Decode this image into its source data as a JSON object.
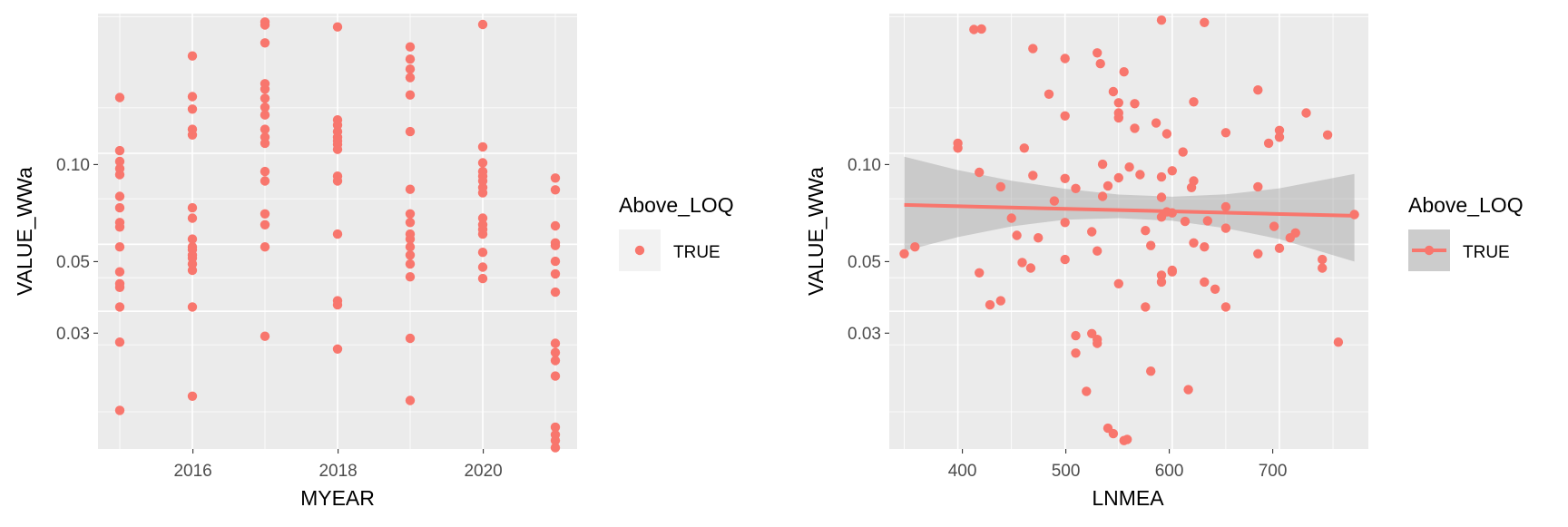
{
  "chart_data": [
    {
      "type": "scatter",
      "xlabel": "MYEAR",
      "ylabel": "VALUE_WWa",
      "xlim": [
        2014.7,
        2021.3
      ],
      "xticks": [
        2016,
        2018,
        2020
      ],
      "xtick_labels": [
        "2016",
        "2018",
        "2020"
      ],
      "y_scale": "log",
      "ylim": [
        0.0105,
        0.29
      ],
      "yticks": [
        0.03,
        0.05,
        0.1
      ],
      "ytick_labels": [
        "0.03",
        "0.05",
        "0.10"
      ],
      "grid": true,
      "legend": {
        "title": "Above_LOQ",
        "entries": [
          "TRUE"
        ],
        "placement": "right"
      },
      "color": "#F8766D",
      "panel_background": "#EBEBEB",
      "series": [
        {
          "x": 2015,
          "y": [
            0.0141,
            0.0237,
            0.031,
            0.036,
            0.037,
            0.0405,
            0.049,
            0.057,
            0.059,
            0.066,
            0.072,
            0.085,
            0.089,
            0.094,
            0.102,
            0.153
          ]
        },
        {
          "x": 2016,
          "y": [
            0.0157,
            0.031,
            0.041,
            0.043,
            0.045,
            0.046,
            0.048,
            0.049,
            0.052,
            0.061,
            0.066,
            0.115,
            0.12,
            0.14,
            0.154,
            0.21
          ]
        },
        {
          "x": 2017,
          "y": [
            0.0248,
            0.049,
            0.058,
            0.063,
            0.081,
            0.087,
            0.108,
            0.113,
            0.12,
            0.134,
            0.142,
            0.152,
            0.163,
            0.17,
            0.232,
            0.266,
            0.272
          ]
        },
        {
          "x": 2018,
          "y": [
            0.0225,
            0.0315,
            0.0325,
            0.054,
            0.081,
            0.084,
            0.103,
            0.107,
            0.11,
            0.113,
            0.118,
            0.124,
            0.129,
            0.262
          ]
        },
        {
          "x": 2019,
          "y": [
            0.0152,
            0.0244,
            0.039,
            0.043,
            0.046,
            0.049,
            0.052,
            0.054,
            0.059,
            0.063,
            0.076,
            0.118,
            0.156,
            0.178,
            0.19,
            0.205,
            0.225
          ]
        },
        {
          "x": 2020,
          "y": [
            0.0385,
            0.042,
            0.047,
            0.054,
            0.056,
            0.058,
            0.061,
            0.074,
            0.077,
            0.081,
            0.084,
            0.087,
            0.093,
            0.105,
            0.267
          ]
        },
        {
          "x": 2021,
          "y": [
            0.0106,
            0.0112,
            0.0117,
            0.0124,
            0.0183,
            0.0206,
            0.0219,
            0.0235,
            0.0347,
            0.0399,
            0.0439,
            0.0495,
            0.0505,
            0.0575,
            0.0757,
            0.0828
          ]
        }
      ]
    },
    {
      "type": "scatter",
      "xlabel": "LNMEA",
      "ylabel": "VALUE_WWa",
      "xlim": [
        336,
        783
      ],
      "xticks": [
        400,
        500,
        600,
        700
      ],
      "xtick_labels": [
        "400",
        "500",
        "600",
        "700"
      ],
      "y_scale": "log",
      "ylim": [
        0.0105,
        0.29
      ],
      "yticks": [
        0.03,
        0.05,
        0.1
      ],
      "ytick_labels": [
        "0.03",
        "0.05",
        "0.10"
      ],
      "grid": true,
      "legend": {
        "title": "Above_LOQ",
        "entries": [
          "TRUE"
        ],
        "placement": "right"
      },
      "color": "#F8766D",
      "panel_background": "#EBEBEB",
      "points": [
        [
          350,
          0.0465
        ],
        [
          360,
          0.049
        ],
        [
          400,
          0.108
        ],
        [
          400,
          0.104
        ],
        [
          415,
          0.257
        ],
        [
          422,
          0.258
        ],
        [
          420,
          0.0865
        ],
        [
          420,
          0.0402
        ],
        [
          430,
          0.0315
        ],
        [
          440,
          0.0325
        ],
        [
          440,
          0.0775
        ],
        [
          450,
          0.061
        ],
        [
          455,
          0.0535
        ],
        [
          460,
          0.0435
        ],
        [
          462,
          0.104
        ],
        [
          468,
          0.0417
        ],
        [
          470,
          0.0845
        ],
        [
          470,
          0.222
        ],
        [
          475,
          0.0525
        ],
        [
          485,
          0.157
        ],
        [
          490,
          0.0695
        ],
        [
          500,
          0.0445
        ],
        [
          500,
          0.059
        ],
        [
          500,
          0.0825
        ],
        [
          500,
          0.133
        ],
        [
          500,
          0.206
        ],
        [
          510,
          0.0249
        ],
        [
          510,
          0.0218
        ],
        [
          510,
          0.0765
        ],
        [
          520,
          0.0163
        ],
        [
          525,
          0.055
        ],
        [
          525,
          0.0253
        ],
        [
          530,
          0.0475
        ],
        [
          530,
          0.0242
        ],
        [
          530,
          0.0235
        ],
        [
          530,
          0.215
        ],
        [
          533,
          0.198
        ],
        [
          535,
          0.092
        ],
        [
          535,
          0.072
        ],
        [
          540,
          0.078
        ],
        [
          540,
          0.0123
        ],
        [
          545,
          0.0118
        ],
        [
          545,
          0.16
        ],
        [
          550,
          0.037
        ],
        [
          550,
          0.083
        ],
        [
          550,
          0.147
        ],
        [
          550,
          0.136
        ],
        [
          550,
          0.131
        ],
        [
          555,
          0.186
        ],
        [
          555,
          0.0112
        ],
        [
          558,
          0.0113
        ],
        [
          560,
          0.09
        ],
        [
          565,
          0.146
        ],
        [
          565,
          0.121
        ],
        [
          570,
          0.085
        ],
        [
          575,
          0.0555
        ],
        [
          575,
          0.031
        ],
        [
          580,
          0.0495
        ],
        [
          580,
          0.019
        ],
        [
          585,
          0.126
        ],
        [
          590,
          0.276
        ],
        [
          590,
          0.0835
        ],
        [
          590,
          0.0715
        ],
        [
          590,
          0.0615
        ],
        [
          590,
          0.0395
        ],
        [
          590,
          0.0375
        ],
        [
          595,
          0.064
        ],
        [
          595,
          0.116
        ],
        [
          600,
          0.0875
        ],
        [
          600,
          0.0635
        ],
        [
          600,
          0.041
        ],
        [
          600,
          0.0405
        ],
        [
          610,
          0.101
        ],
        [
          612,
          0.0595
        ],
        [
          615,
          0.0165
        ],
        [
          618,
          0.077
        ],
        [
          620,
          0.081
        ],
        [
          620,
          0.0505
        ],
        [
          620,
          0.148
        ],
        [
          630,
          0.271
        ],
        [
          630,
          0.049
        ],
        [
          630,
          0.0375
        ],
        [
          633,
          0.0598
        ],
        [
          640,
          0.0355
        ],
        [
          650,
          0.0665
        ],
        [
          650,
          0.0565
        ],
        [
          650,
          0.031
        ],
        [
          650,
          0.117
        ],
        [
          680,
          0.162
        ],
        [
          680,
          0.0465
        ],
        [
          680,
          0.0775
        ],
        [
          690,
          0.108
        ],
        [
          695,
          0.0573
        ],
        [
          700,
          0.119
        ],
        [
          700,
          0.113
        ],
        [
          700,
          0.0485
        ],
        [
          710,
          0.0525
        ],
        [
          715,
          0.0545
        ],
        [
          725,
          0.136
        ],
        [
          740,
          0.0445
        ],
        [
          740,
          0.0417
        ],
        [
          745,
          0.115
        ],
        [
          755,
          0.0237
        ],
        [
          770,
          0.0627
        ]
      ],
      "fit": {
        "type": "linear",
        "x": [
          350,
          770
        ],
        "y": [
          0.0675,
          0.0621
        ],
        "ci_band": {
          "x": [
            350,
            400,
            450,
            500,
            550,
            600,
            650,
            700,
            770
          ],
          "lower": [
            0.0475,
            0.0528,
            0.0573,
            0.0603,
            0.061,
            0.0598,
            0.0565,
            0.052,
            0.0438
          ],
          "upper": [
            0.0975,
            0.088,
            0.0811,
            0.0763,
            0.073,
            0.0718,
            0.0731,
            0.0766,
            0.0855
          ]
        },
        "band_color": "#999999",
        "line_color": "#F8766D"
      }
    }
  ]
}
